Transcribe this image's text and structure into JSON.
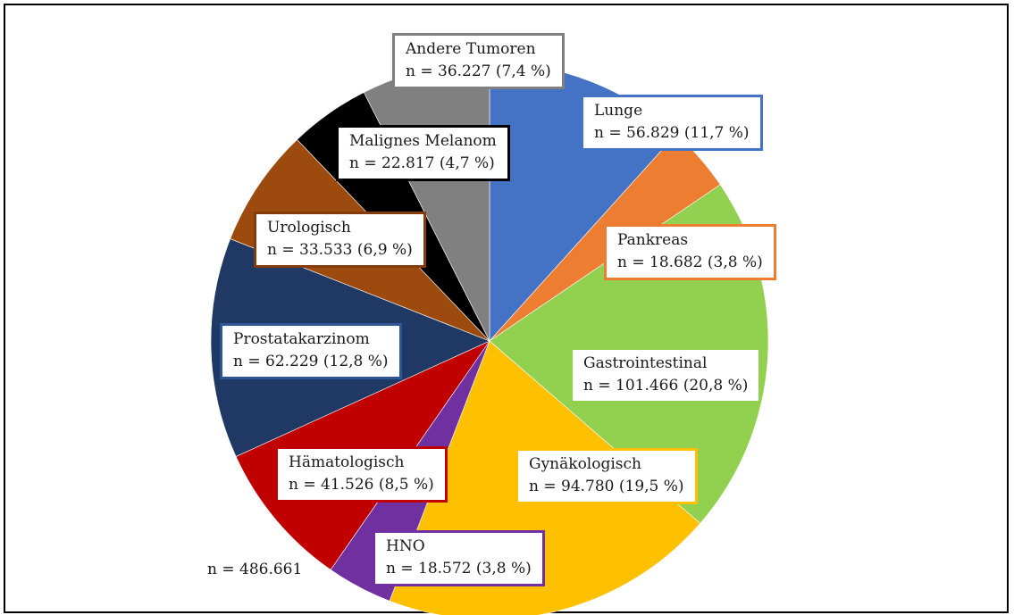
{
  "chart_data": {
    "type": "pie",
    "total_label": "n = 486.661",
    "slices": [
      {
        "name": "Lunge",
        "value": 56829,
        "text": "n = 56.829 (11,7 %)",
        "color": "#4472C4"
      },
      {
        "name": "Pankreas",
        "value": 18682,
        "text": "n = 18.682 (3,8 %)",
        "color": "#ED7D31"
      },
      {
        "name": "Gastrointestinal",
        "value": 101466,
        "text": "n = 101.466 (20,8 %)",
        "color": "#92D050"
      },
      {
        "name": "Gynäkologisch",
        "value": 94780,
        "text": "n = 94.780 (19,5 %)",
        "color": "#FFC000"
      },
      {
        "name": "HNO",
        "value": 18572,
        "text": "n = 18.572 (3,8 %)",
        "color": "#7030A0"
      },
      {
        "name": "Hämatologisch",
        "value": 41526,
        "text": "n = 41.526 (8,5 %)",
        "color": "#C00000"
      },
      {
        "name": "Prostatakarzinom",
        "value": 62229,
        "text": "n = 62.229 (12,8 %)",
        "color": "#1F3864"
      },
      {
        "name": "Urologisch",
        "value": 33533,
        "text": "n = 33.533 (6,9 %)",
        "color": "#9C4A0E"
      },
      {
        "name": "Malignes Melanom",
        "value": 22817,
        "text": "n = 22.817 (4,7 %)",
        "color": "#000000"
      },
      {
        "name": "Andere Tumoren",
        "value": 36227,
        "text": "n = 36.227 (7,4 %)",
        "color": "#808080"
      }
    ]
  }
}
